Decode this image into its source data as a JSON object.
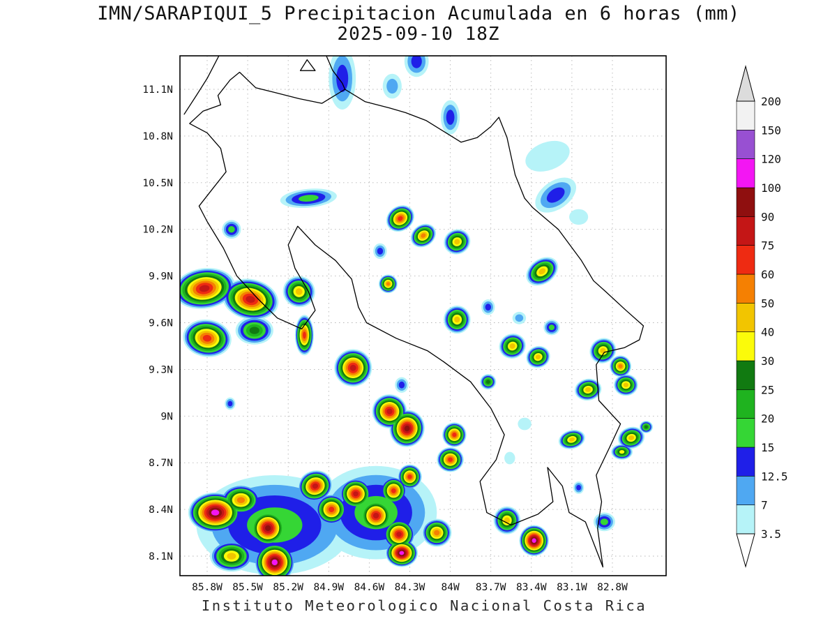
{
  "title": {
    "line1": "IMN/SARAPIQUI_5 Precipitacion Acumulada en 6 horas (mm)",
    "line2": "2025-09-10 18Z"
  },
  "footer": "Instituto Meteorologico Nacional Costa Rica",
  "chart_data": {
    "type": "heatmap",
    "title": "IMN/SARAPIQUI_5 Precipitacion Acumulada en 6 horas (mm)",
    "datetime_label": "2025-09-10 18Z",
    "units": "mm",
    "region": "Costa Rica",
    "x_axis": {
      "label": "longitude",
      "ticks": [
        "85.8W",
        "85.5W",
        "85.2W",
        "84.9W",
        "84.6W",
        "84.3W",
        "84W",
        "83.7W",
        "83.4W",
        "83.1W",
        "82.8W"
      ]
    },
    "y_axis": {
      "label": "latitude",
      "ticks": [
        "11.1N",
        "10.8N",
        "10.5N",
        "10.2N",
        "9.9N",
        "9.6N",
        "9.3N",
        "9N",
        "8.7N",
        "8.4N",
        "8.1N"
      ]
    },
    "lon_tick_values": [
      85.8,
      85.5,
      85.2,
      84.9,
      84.6,
      84.3,
      84.0,
      83.7,
      83.4,
      83.1,
      82.8
    ],
    "lat_tick_values": [
      11.1,
      10.8,
      10.5,
      10.2,
      9.9,
      9.6,
      9.3,
      9.0,
      8.7,
      8.4,
      8.1
    ],
    "levels": [
      3.5,
      7,
      12.5,
      15,
      20,
      25,
      30,
      40,
      50,
      60,
      75,
      90,
      100,
      120,
      150,
      200
    ],
    "level_labels": [
      "3.5",
      "7",
      "12.5",
      "15",
      "20",
      "25",
      "30",
      "40",
      "50",
      "60",
      "75",
      "90",
      "100",
      "120",
      "150",
      "200"
    ],
    "level_colors": [
      "#b6f3f8",
      "#4fa8f2",
      "#1f1fe8",
      "#35d635",
      "#1fb31f",
      "#117a11",
      "#fbfb0a",
      "#f2c500",
      "#f58002",
      "#ee2b12",
      "#c41616",
      "#8f0f0f",
      "#f316f3",
      "#9850d2",
      "#f2f2f2"
    ],
    "under_color": "#ffffff",
    "over_color": "#dcdcdc",
    "cell_format": "[lon_w_deg, lat_deg, max_mm, rx_deg, ry_deg, rot_deg]",
    "cells": [
      [
        84.8,
        11.17,
        13,
        0.1,
        0.2,
        0
      ],
      [
        84.43,
        11.12,
        8,
        0.07,
        0.08,
        0
      ],
      [
        84.25,
        11.28,
        13,
        0.09,
        0.1,
        0
      ],
      [
        84.0,
        10.92,
        13,
        0.07,
        0.11,
        0
      ],
      [
        83.28,
        10.67,
        5,
        0.17,
        0.09,
        -20
      ],
      [
        83.22,
        10.42,
        13,
        0.17,
        0.09,
        -35
      ],
      [
        83.05,
        10.28,
        5,
        0.07,
        0.05,
        0
      ],
      [
        85.62,
        10.2,
        16,
        0.07,
        0.06,
        0
      ],
      [
        85.05,
        10.4,
        16,
        0.21,
        0.06,
        -5
      ],
      [
        84.37,
        10.27,
        65,
        0.11,
        0.08,
        -35
      ],
      [
        84.2,
        10.16,
        55,
        0.1,
        0.07,
        -35
      ],
      [
        83.95,
        10.12,
        45,
        0.1,
        0.08,
        -25
      ],
      [
        84.52,
        10.06,
        13,
        0.05,
        0.05,
        0
      ],
      [
        83.32,
        9.93,
        45,
        0.13,
        0.08,
        -35
      ],
      [
        85.82,
        9.82,
        80,
        0.23,
        0.13,
        -8
      ],
      [
        85.48,
        9.75,
        80,
        0.21,
        0.13,
        12
      ],
      [
        85.12,
        9.8,
        45,
        0.12,
        0.1,
        20
      ],
      [
        85.8,
        9.5,
        65,
        0.18,
        0.12,
        8
      ],
      [
        85.45,
        9.55,
        27,
        0.14,
        0.09,
        0
      ],
      [
        85.08,
        9.52,
        65,
        0.07,
        0.13,
        0
      ],
      [
        84.46,
        9.85,
        55,
        0.07,
        0.06,
        0
      ],
      [
        83.95,
        9.62,
        45,
        0.1,
        0.09,
        0
      ],
      [
        83.72,
        9.7,
        13,
        0.05,
        0.05,
        0
      ],
      [
        83.49,
        9.63,
        8,
        0.05,
        0.04,
        0
      ],
      [
        84.72,
        9.31,
        80,
        0.14,
        0.12,
        -10
      ],
      [
        84.36,
        9.2,
        13,
        0.05,
        0.05,
        0
      ],
      [
        83.54,
        9.45,
        45,
        0.1,
        0.08,
        -20
      ],
      [
        83.35,
        9.38,
        45,
        0.09,
        0.07,
        -20
      ],
      [
        83.25,
        9.57,
        17,
        0.06,
        0.05,
        0
      ],
      [
        82.87,
        9.42,
        45,
        0.1,
        0.08,
        -30
      ],
      [
        82.74,
        9.32,
        55,
        0.08,
        0.07,
        -30
      ],
      [
        83.72,
        9.22,
        27,
        0.06,
        0.05,
        0
      ],
      [
        82.98,
        9.17,
        45,
        0.1,
        0.07,
        -10
      ],
      [
        82.7,
        9.2,
        45,
        0.09,
        0.07,
        0
      ],
      [
        85.63,
        9.08,
        13,
        0.04,
        0.04,
        0
      ],
      [
        84.45,
        9.03,
        80,
        0.13,
        0.11,
        15
      ],
      [
        84.32,
        8.92,
        95,
        0.13,
        0.12,
        15
      ],
      [
        83.97,
        8.88,
        65,
        0.09,
        0.08,
        0
      ],
      [
        83.45,
        8.95,
        5,
        0.05,
        0.04,
        0
      ],
      [
        83.1,
        8.85,
        45,
        0.1,
        0.06,
        -15
      ],
      [
        82.66,
        8.86,
        45,
        0.1,
        0.07,
        -15
      ],
      [
        82.55,
        8.93,
        27,
        0.05,
        0.04,
        0
      ],
      [
        84.0,
        8.72,
        65,
        0.1,
        0.08,
        0
      ],
      [
        83.56,
        8.73,
        5,
        0.04,
        0.04,
        0
      ],
      [
        82.73,
        8.77,
        35,
        0.08,
        0.05,
        0
      ],
      [
        85.3,
        8.3,
        17,
        0.58,
        0.32,
        0
      ],
      [
        84.55,
        8.38,
        17,
        0.45,
        0.3,
        0
      ],
      [
        85.74,
        8.38,
        110,
        0.2,
        0.13,
        0
      ],
      [
        85.55,
        8.46,
        55,
        0.15,
        0.1,
        0
      ],
      [
        85.35,
        8.28,
        95,
        0.14,
        0.12,
        0
      ],
      [
        85.62,
        8.1,
        45,
        0.16,
        0.1,
        0
      ],
      [
        85.3,
        8.06,
        110,
        0.15,
        0.13,
        0
      ],
      [
        85.0,
        8.55,
        80,
        0.13,
        0.1,
        -20
      ],
      [
        84.88,
        8.4,
        65,
        0.12,
        0.1,
        0
      ],
      [
        84.7,
        8.5,
        80,
        0.12,
        0.1,
        0
      ],
      [
        84.55,
        8.36,
        80,
        0.13,
        0.11,
        0
      ],
      [
        84.42,
        8.52,
        70,
        0.1,
        0.09,
        0
      ],
      [
        84.3,
        8.61,
        65,
        0.09,
        0.08,
        0
      ],
      [
        84.38,
        8.24,
        80,
        0.12,
        0.1,
        0
      ],
      [
        84.36,
        8.12,
        110,
        0.12,
        0.09,
        0
      ],
      [
        84.1,
        8.25,
        55,
        0.11,
        0.09,
        0
      ],
      [
        83.58,
        8.33,
        45,
        0.1,
        0.09,
        0
      ],
      [
        83.38,
        8.2,
        105,
        0.11,
        0.1,
        0
      ],
      [
        83.05,
        8.54,
        13,
        0.04,
        0.04,
        0
      ],
      [
        82.86,
        8.32,
        17,
        0.08,
        0.06,
        0
      ]
    ],
    "map_outlines": {
      "costa_rica": [
        [
          85.72,
          11.06
        ],
        [
          85.63,
          11.16
        ],
        [
          85.56,
          11.21
        ],
        [
          85.44,
          11.11
        ],
        [
          85.3,
          11.08
        ],
        [
          85.12,
          11.04
        ],
        [
          84.95,
          11.01
        ],
        [
          84.78,
          11.1
        ],
        [
          84.63,
          11.02
        ],
        [
          84.45,
          10.98
        ],
        [
          84.33,
          10.95
        ],
        [
          84.18,
          10.9
        ],
        [
          84.05,
          10.83
        ],
        [
          83.92,
          10.76
        ],
        [
          83.8,
          10.79
        ],
        [
          83.7,
          10.86
        ],
        [
          83.64,
          10.92
        ],
        [
          83.58,
          10.79
        ],
        [
          83.52,
          10.55
        ],
        [
          83.45,
          10.4
        ],
        [
          83.39,
          10.34
        ],
        [
          83.2,
          10.2
        ],
        [
          83.03,
          10.0
        ],
        [
          82.94,
          9.87
        ],
        [
          82.85,
          9.8
        ],
        [
          82.7,
          9.68
        ],
        [
          82.57,
          9.58
        ],
        [
          82.6,
          9.49
        ],
        [
          82.71,
          9.44
        ],
        [
          82.86,
          9.41
        ],
        [
          82.92,
          9.33
        ],
        [
          82.9,
          9.1
        ],
        [
          82.74,
          8.95
        ],
        [
          82.82,
          8.8
        ],
        [
          82.92,
          8.62
        ],
        [
          82.88,
          8.45
        ],
        [
          82.91,
          8.28
        ],
        [
          82.87,
          8.03
        ],
        [
          83.0,
          8.32
        ],
        [
          83.12,
          8.38
        ],
        [
          83.17,
          8.55
        ],
        [
          83.28,
          8.67
        ],
        [
          83.24,
          8.45
        ],
        [
          83.35,
          8.37
        ],
        [
          83.55,
          8.3
        ],
        [
          83.73,
          8.38
        ],
        [
          83.78,
          8.58
        ],
        [
          83.66,
          8.72
        ],
        [
          83.6,
          8.88
        ],
        [
          83.7,
          9.05
        ],
        [
          83.85,
          9.22
        ],
        [
          84.05,
          9.35
        ],
        [
          84.17,
          9.42
        ],
        [
          84.4,
          9.5
        ],
        [
          84.62,
          9.6
        ],
        [
          84.68,
          9.7
        ],
        [
          84.73,
          9.88
        ],
        [
          84.85,
          10.0
        ],
        [
          85.0,
          10.1
        ],
        [
          85.13,
          10.22
        ],
        [
          85.2,
          10.1
        ],
        [
          85.15,
          9.95
        ],
        [
          85.05,
          9.8
        ],
        [
          85.0,
          9.68
        ],
        [
          85.1,
          9.56
        ],
        [
          85.28,
          9.63
        ],
        [
          85.42,
          9.75
        ],
        [
          85.58,
          9.9
        ],
        [
          85.68,
          10.08
        ],
        [
          85.8,
          10.25
        ],
        [
          85.86,
          10.35
        ],
        [
          85.76,
          10.46
        ],
        [
          85.66,
          10.57
        ],
        [
          85.7,
          10.72
        ],
        [
          85.8,
          10.82
        ],
        [
          85.93,
          10.88
        ],
        [
          85.83,
          10.96
        ],
        [
          85.7,
          11.0
        ],
        [
          85.72,
          11.06
        ]
      ],
      "nicaragua_pacific_coast": [
        [
          85.97,
          10.94
        ],
        [
          85.88,
          11.06
        ],
        [
          85.8,
          11.17
        ],
        [
          85.71,
          11.32
        ]
      ],
      "lake_nicaragua_shore": [
        [
          84.92,
          11.32
        ],
        [
          84.87,
          11.22
        ],
        [
          84.8,
          11.14
        ],
        [
          84.78,
          11.1
        ]
      ],
      "ometepe_island": [
        [
          85.06,
          11.29
        ],
        [
          85.0,
          11.22
        ],
        [
          85.11,
          11.22
        ],
        [
          85.06,
          11.29
        ]
      ]
    },
    "legend_position": "right",
    "grid": "dashed"
  }
}
